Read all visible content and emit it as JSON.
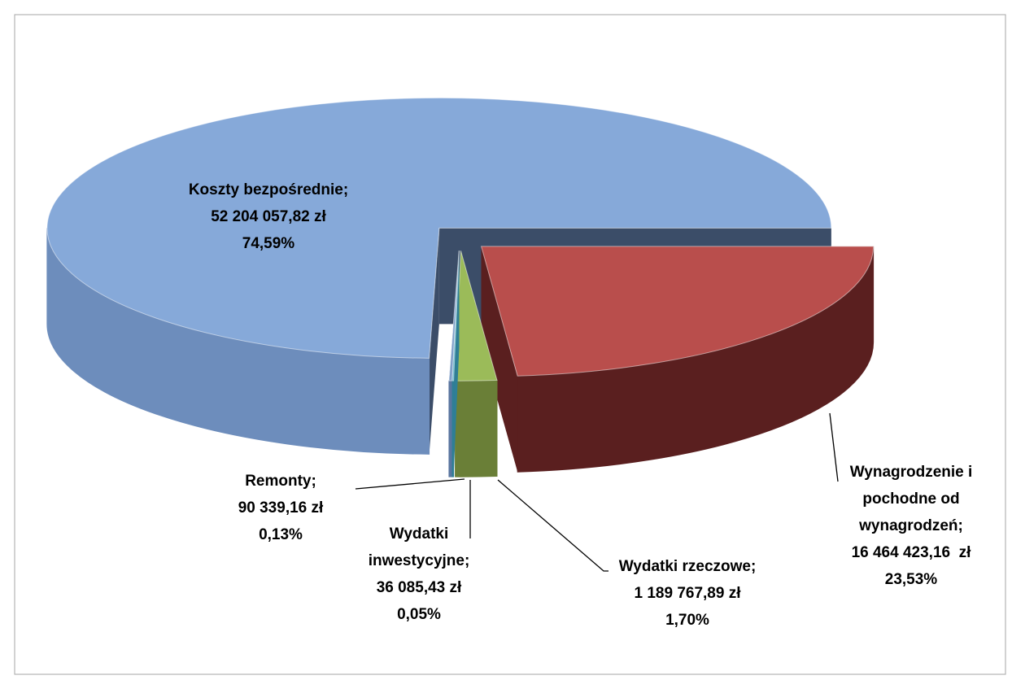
{
  "chart_data": {
    "type": "pie3d",
    "categories": [
      "Wynagrodzenie i pochodne od wynagrodzeń;",
      "Wydatki rzeczowe;",
      "Wydatki inwestycyjne;",
      "Remonty;",
      "Koszty bezpośrednie;"
    ],
    "values": [
      16464423.16,
      1189767.89,
      36085.43,
      90339.16,
      52204057.82
    ],
    "value_labels": [
      "16 464 423,16  zł",
      "1 189 767,89 zł",
      "36 085,43 zł",
      "90 339,16 zł",
      "52 204 057,82 zł"
    ],
    "percentages": [
      23.53,
      1.7,
      0.05,
      0.13,
      74.59
    ],
    "percentage_labels": [
      "23,53%",
      "1,70%",
      "0,05%",
      "0,13%",
      "74,59%"
    ],
    "colors": [
      "#b94e4c",
      "#9bbb59",
      "#4bacc6",
      "#7f9fc9",
      "#86a9d9"
    ],
    "wall_colors": [
      "#5a1f1f",
      "#6a7f37",
      "#2f7f96",
      "#5a76a0",
      "#6d8dbc"
    ]
  }
}
